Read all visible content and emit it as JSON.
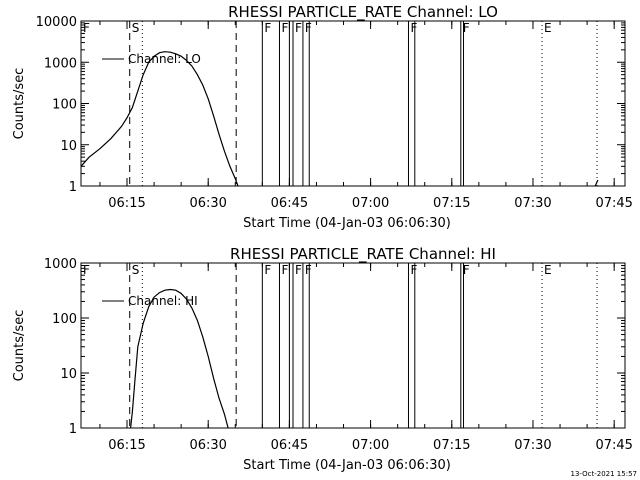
{
  "footer_stamp": "13-Oct-2021 15:57",
  "chart_data": [
    {
      "type": "line",
      "title": "RHESSI PARTICLE_RATE Channel: LO",
      "xlabel": "Start Time (04-Jan-03 06:06:30)",
      "ylabel": "Counts/sec",
      "y_scale": "log",
      "ylim": [
        1,
        10000
      ],
      "y_ticks": [
        "1",
        "10",
        "100",
        "1000",
        "10000"
      ],
      "x_ticks": [
        "06:15",
        "06:30",
        "06:45",
        "07:00",
        "07:15",
        "07:30",
        "07:45"
      ],
      "legend": "Channel: LO",
      "legend_position": "top-left",
      "series": [
        {
          "name": "Channel: LO",
          "x": [
            "06:06:30",
            "06:08",
            "06:10",
            "06:12",
            "06:14",
            "06:15",
            "06:16",
            "06:17",
            "06:18",
            "06:19",
            "06:20",
            "06:21",
            "06:22",
            "06:23",
            "06:24",
            "06:25",
            "06:26",
            "06:27",
            "06:28",
            "06:29",
            "06:30",
            "06:31",
            "06:32",
            "06:33",
            "06:34",
            "06:35",
            "06:35:30"
          ],
          "y": [
            3,
            5,
            8,
            14,
            28,
            45,
            80,
            200,
            500,
            1000,
            1400,
            1700,
            1800,
            1750,
            1600,
            1400,
            1100,
            800,
            500,
            280,
            130,
            50,
            18,
            7,
            3,
            1.5,
            1
          ]
        }
      ],
      "vertical_markers": {
        "dashed": [
          "06:15:30",
          "06:35:10"
        ],
        "dotted": [
          "06:17:50",
          "07:31:40",
          "07:41:50"
        ],
        "solid": [
          "06:40",
          "06:43:10",
          "06:45",
          "06:45:40",
          "06:47:30",
          "06:48:40",
          "07:07:00",
          "07:08:10",
          "07:16:40",
          "07:17:10"
        ]
      },
      "marker_letters": [
        {
          "text": "F",
          "at": "06:06:30"
        },
        {
          "text": "S",
          "at": "06:15:30"
        },
        {
          "text": "F",
          "at": "06:40"
        },
        {
          "text": "F",
          "at": "06:43:10"
        },
        {
          "text": "F",
          "at": "06:45:40"
        },
        {
          "text": "F",
          "at": "06:47:30"
        },
        {
          "text": "F",
          "at": "07:07:00"
        },
        {
          "text": "F",
          "at": "07:16:40"
        },
        {
          "text": "E",
          "at": "07:31:40"
        }
      ],
      "tail_segment": {
        "x": [
          "07:41:30",
          "07:42:00"
        ],
        "y": [
          1,
          1.4
        ]
      }
    },
    {
      "type": "line",
      "title": "RHESSI PARTICLE_RATE Channel: HI",
      "xlabel": "Start Time (04-Jan-03 06:06:30)",
      "ylabel": "Counts/sec",
      "y_scale": "log",
      "ylim": [
        1,
        1000
      ],
      "y_ticks": [
        "1",
        "10",
        "100",
        "1000"
      ],
      "x_ticks": [
        "06:15",
        "06:30",
        "06:45",
        "07:00",
        "07:15",
        "07:30",
        "07:45"
      ],
      "legend": "Channel: HI",
      "legend_position": "top-left",
      "series": [
        {
          "name": "Channel: HI",
          "x": [
            "06:15:40",
            "06:16",
            "06:16:30",
            "06:17",
            "06:18",
            "06:19",
            "06:20",
            "06:21",
            "06:22",
            "06:23",
            "06:24",
            "06:25",
            "06:26",
            "06:27",
            "06:28",
            "06:29",
            "06:30",
            "06:31",
            "06:32",
            "06:33",
            "06:33:40"
          ],
          "y": [
            1,
            2,
            8,
            30,
            80,
            160,
            240,
            290,
            320,
            330,
            320,
            280,
            220,
            150,
            90,
            45,
            20,
            8,
            3.5,
            1.8,
            1
          ]
        }
      ],
      "vertical_markers": {
        "dashed": [
          "06:15:30",
          "06:35:10"
        ],
        "dotted": [
          "06:17:50",
          "07:31:40",
          "07:41:50"
        ],
        "solid": [
          "06:40",
          "06:43:10",
          "06:45",
          "06:45:40",
          "06:47:30",
          "06:48:40",
          "07:07:00",
          "07:08:10",
          "07:16:40",
          "07:17:10"
        ]
      },
      "marker_letters": [
        {
          "text": "F",
          "at": "06:06:30"
        },
        {
          "text": "S",
          "at": "06:15:30"
        },
        {
          "text": "F",
          "at": "06:40"
        },
        {
          "text": "F",
          "at": "06:43:10"
        },
        {
          "text": "F",
          "at": "06:45:40"
        },
        {
          "text": "F",
          "at": "06:47:30"
        },
        {
          "text": "F",
          "at": "07:07:00"
        },
        {
          "text": "F",
          "at": "07:16:40"
        },
        {
          "text": "E",
          "at": "07:31:40"
        }
      ]
    }
  ]
}
